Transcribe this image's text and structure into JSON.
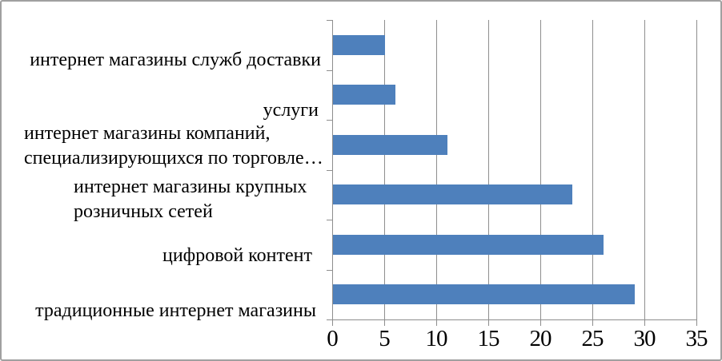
{
  "chart_data": {
    "type": "bar",
    "orientation": "horizontal",
    "title": "",
    "xlabel": "",
    "ylabel": "",
    "category_order": "top-to-bottom",
    "categories": [
      "интернет магазины служб доставки",
      "услуги",
      "интернет магазины компаний, специализирующихся по торговле…",
      "интернет магазины крупных розничных сетей",
      "цифровой контент",
      "традиционные интернет магазины"
    ],
    "display_labels": [
      "интернет магазины служб доставки",
      "услуги",
      "интернет магазины компаний,\nспециализирующихся по торговле…",
      "интернет магазины крупных\nрозничных сетей",
      "цифровой контент",
      "традиционные интернет магазины"
    ],
    "values": [
      5,
      6,
      11,
      23,
      26,
      29
    ],
    "x_ticks": [
      0,
      5,
      10,
      15,
      20,
      25,
      30,
      35
    ],
    "xlim": [
      0,
      35
    ],
    "grid": true,
    "legend": false,
    "colors": {
      "bar": "#4E80BC",
      "gridline": "#8E8E8E",
      "axis": "#8E8E8E",
      "text": "#000000",
      "frame_border": "#A0A0A0",
      "background": "#FFFFFF"
    }
  }
}
